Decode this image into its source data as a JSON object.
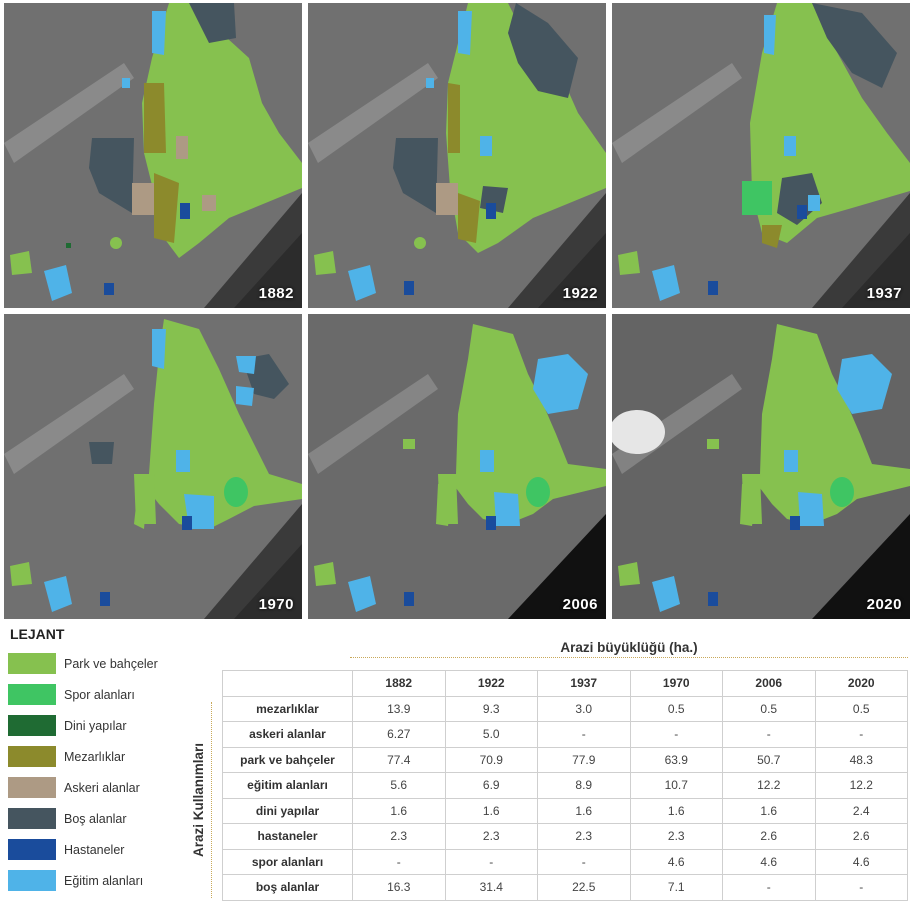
{
  "maps": [
    {
      "year": "1882"
    },
    {
      "year": "1922"
    },
    {
      "year": "1937"
    },
    {
      "year": "1970"
    },
    {
      "year": "2006"
    },
    {
      "year": "2020"
    }
  ],
  "legend": {
    "title": "LEJANT",
    "items": [
      {
        "label": "Park ve bahçeler",
        "color": "#86c14f"
      },
      {
        "label": "Spor alanları",
        "color": "#3fc563"
      },
      {
        "label": "Dini yapılar",
        "color": "#1f6b33"
      },
      {
        "label": "Mezarlıklar",
        "color": "#8c8a2c"
      },
      {
        "label": "Askeri alanlar",
        "color": "#ad9a84"
      },
      {
        "label": "Boş alanlar",
        "color": "#45555f"
      },
      {
        "label": "Hastaneler",
        "color": "#1a4c9c"
      },
      {
        "label": "Eğitim alanları",
        "color": "#4fb3e8"
      }
    ]
  },
  "table": {
    "title": "Arazi büyüklüğü (ha.)",
    "row_axis_label": "Arazi Kullanımları",
    "years": [
      "1882",
      "1922",
      "1937",
      "1970",
      "2006",
      "2020"
    ],
    "rows": [
      {
        "label": "mezarlıklar",
        "values": [
          "13.9",
          "9.3",
          "3.0",
          "0.5",
          "0.5",
          "0.5"
        ]
      },
      {
        "label": "askeri alanlar",
        "values": [
          "6.27",
          "5.0",
          "-",
          "-",
          "-",
          "-"
        ]
      },
      {
        "label": "park ve bahçeler",
        "values": [
          "77.4",
          "70.9",
          "77.9",
          "63.9",
          "50.7",
          "48.3"
        ]
      },
      {
        "label": "eğitim alanları",
        "values": [
          "5.6",
          "6.9",
          "8.9",
          "10.7",
          "12.2",
          "12.2"
        ]
      },
      {
        "label": "dini yapılar",
        "values": [
          "1.6",
          "1.6",
          "1.6",
          "1.6",
          "1.6",
          "2.4"
        ]
      },
      {
        "label": "hastaneler",
        "values": [
          "2.3",
          "2.3",
          "2.3",
          "2.3",
          "2.6",
          "2.6"
        ]
      },
      {
        "label": "spor alanları",
        "values": [
          "-",
          "-",
          "-",
          "4.6",
          "4.6",
          "4.6"
        ]
      },
      {
        "label": "boş alanlar",
        "values": [
          "16.3",
          "31.4",
          "22.5",
          "7.1",
          "-",
          "-"
        ]
      }
    ]
  }
}
